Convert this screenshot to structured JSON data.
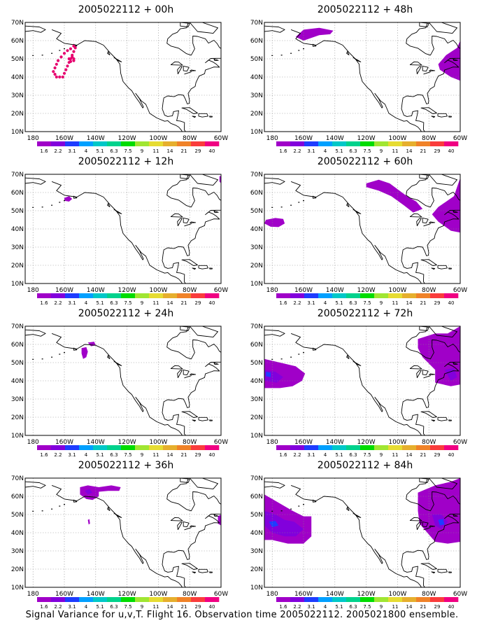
{
  "figure": {
    "caption": "Signal Variance for u,v,T. Flight 16. Observation time 2005022112. 2005021800 ensemble."
  },
  "axes": {
    "lat_labels": [
      "70N",
      "60N",
      "50N",
      "40N",
      "30N",
      "20N",
      "10N"
    ],
    "lon_labels": [
      "180",
      "160W",
      "140W",
      "120W",
      "100W",
      "80W",
      "60W"
    ],
    "lat_range": [
      10,
      70
    ],
    "lon_range": [
      -185,
      -60
    ],
    "grid": "dotted"
  },
  "colorbar": {
    "labels": [
      "1.6",
      "2.2",
      "3.1",
      "4",
      "5.1",
      "6.3",
      "7.5",
      "9",
      "11",
      "14",
      "21",
      "29",
      "40"
    ],
    "colors": [
      "#a000c8",
      "#8200dc",
      "#1e3cff",
      "#00a0ff",
      "#00c8c8",
      "#00d28c",
      "#00dc00",
      "#a0e632",
      "#e6dc32",
      "#e6af2d",
      "#f08228",
      "#fa3c3c",
      "#f00082"
    ]
  },
  "panels": [
    {
      "id": "p00",
      "title": "2005022112 + 00h",
      "lead_hours": 0
    },
    {
      "id": "p48",
      "title": "2005022112 + 48h",
      "lead_hours": 48
    },
    {
      "id": "p12",
      "title": "2005022112 + 12h",
      "lead_hours": 12
    },
    {
      "id": "p60",
      "title": "2005022112 + 60h",
      "lead_hours": 60
    },
    {
      "id": "p24",
      "title": "2005022112 + 24h",
      "lead_hours": 24
    },
    {
      "id": "p72",
      "title": "2005022112 + 72h",
      "lead_hours": 72
    },
    {
      "id": "p36",
      "title": "2005022112 + 36h",
      "lead_hours": 36
    },
    {
      "id": "p84",
      "title": "2005022112 + 84h",
      "lead_hours": 84
    }
  ],
  "shading": {
    "fill_color": "#a000c8",
    "core_color": "#8200dc",
    "strong_color": "#1e3cff",
    "obs_marker_color": "#e6006e"
  }
}
